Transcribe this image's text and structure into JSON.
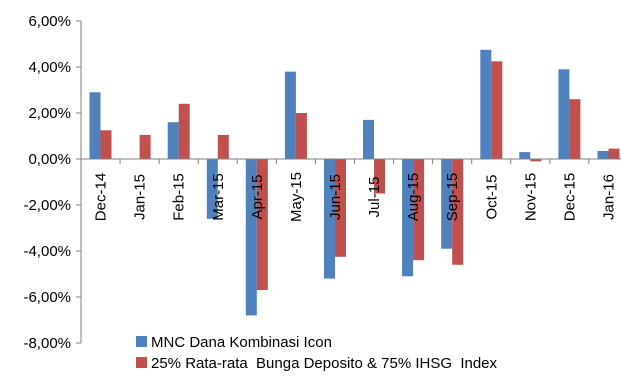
{
  "chart_data": {
    "type": "bar",
    "categories": [
      "Dec-14",
      "Jan-15",
      "Feb-15",
      "Mar-15",
      "Apr-15",
      "May-15",
      "Jun-15",
      "Jul-15",
      "Aug-15",
      "Sep-15",
      "Oct-15",
      "Nov-15",
      "Dec-15",
      "Jan-16"
    ],
    "series": [
      {
        "name": "MNC Dana Kombinasi Icon",
        "color": "#4f81bd",
        "values": [
          2.9,
          0.0,
          1.6,
          -2.6,
          -6.8,
          3.8,
          -5.2,
          1.7,
          -5.1,
          -3.9,
          4.75,
          0.3,
          3.9,
          0.35
        ]
      },
      {
        "name": "25% Rata-rata  Bunga Deposito & 75% IHSG  Index",
        "color": "#c0504d",
        "values": [
          1.25,
          1.05,
          2.4,
          1.05,
          -5.7,
          2.0,
          -4.25,
          -1.5,
          -4.4,
          -4.6,
          4.25,
          -0.1,
          2.6,
          0.45
        ]
      }
    ],
    "yticks": [
      "6,00%",
      "4,00%",
      "2,00%",
      "0,00%",
      "-2,00%",
      "-4,00%",
      "-6,00%",
      "-8,00%"
    ],
    "ylim": [
      -8,
      6
    ],
    "grid": false,
    "legend": "bottom"
  }
}
